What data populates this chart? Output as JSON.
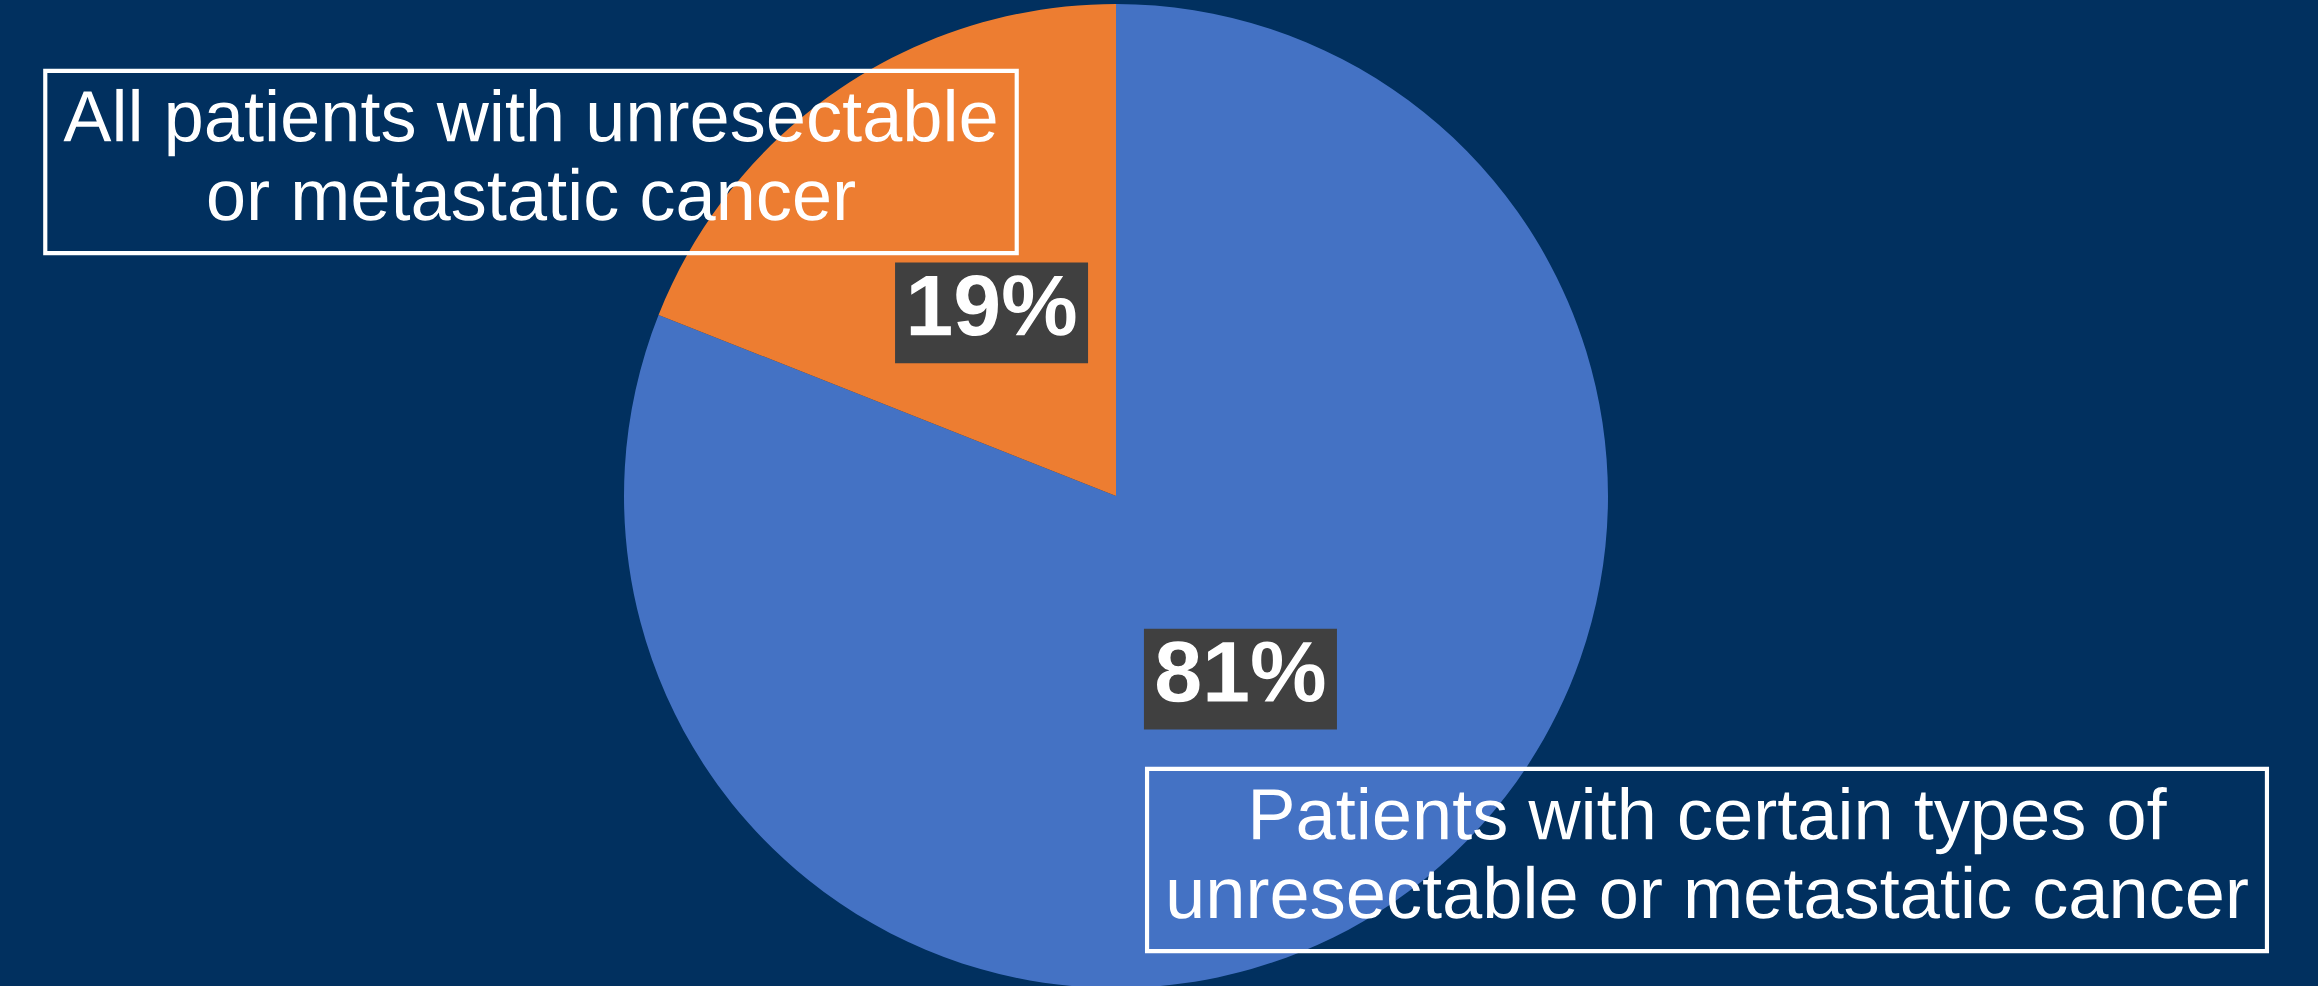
{
  "chart_data": {
    "type": "pie",
    "categories": [
      "Patients with certain types of\nunresectable or metastatic cancer",
      "All patients with unresectable\nor metastatic cancer"
    ],
    "values": [
      81,
      19
    ],
    "colors": [
      "#4472c4",
      "#ed7d31"
    ],
    "value_labels": [
      "81%",
      "19%"
    ]
  }
}
